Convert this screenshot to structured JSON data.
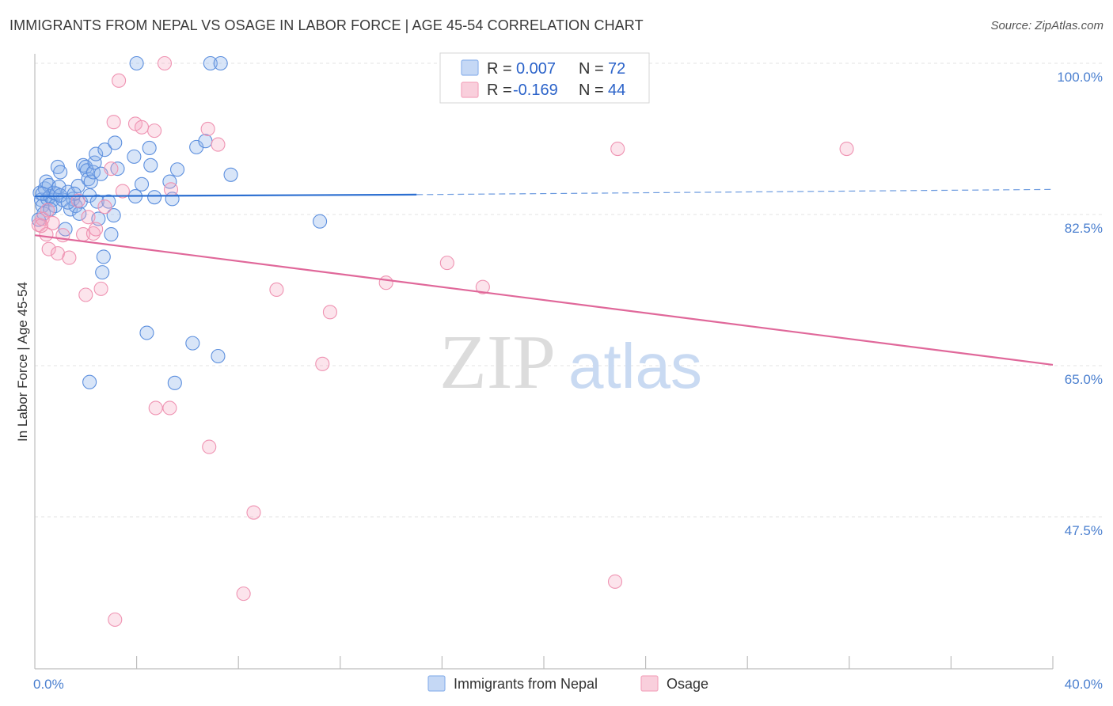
{
  "title": "IMMIGRANTS FROM NEPAL VS OSAGE IN LABOR FORCE | AGE 45-54 CORRELATION CHART",
  "source": "Source: ZipAtlas.com",
  "watermark": {
    "zip": "ZIP",
    "atlas": "atlas"
  },
  "legend": {
    "rows": [
      {
        "r_label": "R = ",
        "r_value": "0.007",
        "n_label": "N = ",
        "n_value": "72"
      },
      {
        "r_label": "R = ",
        "r_value": "-0.169",
        "n_label": "N = ",
        "n_value": "44"
      }
    ]
  },
  "chart_data": {
    "type": "scatter",
    "title": "IMMIGRANTS FROM NEPAL VS OSAGE IN LABOR FORCE | AGE 45-54 CORRELATION CHART",
    "xlabel": "",
    "ylabel": "In Labor Force | Age 45-54",
    "xlim": [
      0,
      40
    ],
    "ylim": [
      31,
      101.5
    ],
    "x_tick_labels": [
      "0.0%",
      "40.0%"
    ],
    "y_ticks": [
      100,
      82.5,
      65,
      47.5
    ],
    "y_tick_labels": [
      "100.0%",
      "82.5%",
      "65.0%",
      "47.5%"
    ],
    "grid": true,
    "legend_position": "top-center",
    "colors": {
      "nepal": "#8fb4ec",
      "nepal_line": "#2c6fd1",
      "osage": "#f4a7bf",
      "osage_line": "#e0689a"
    },
    "series": [
      {
        "name": "Immigrants from Nepal",
        "r": 0.007,
        "n": 72,
        "trend": {
          "x": [
            0,
            15,
            40
          ],
          "y": [
            84.6,
            84.8,
            85.4
          ]
        },
        "points": [
          [
            0.2,
            85
          ],
          [
            0.25,
            84.2
          ],
          [
            0.3,
            83.5
          ],
          [
            0.35,
            82.6
          ],
          [
            0.4,
            85.5
          ],
          [
            0.45,
            86.3
          ],
          [
            0.5,
            84.3
          ],
          [
            0.55,
            85.9
          ],
          [
            0.6,
            84.6
          ],
          [
            0.7,
            84.2
          ],
          [
            0.75,
            85
          ],
          [
            0.8,
            83.5
          ],
          [
            0.85,
            84.9
          ],
          [
            0.9,
            88
          ],
          [
            0.95,
            85.7
          ],
          [
            1.0,
            87.4
          ],
          [
            1.1,
            84.2
          ],
          [
            1.2,
            80.8
          ],
          [
            1.3,
            85.1
          ],
          [
            1.4,
            83.1
          ],
          [
            1.5,
            84.3
          ],
          [
            1.6,
            83.5
          ],
          [
            1.7,
            85.8
          ],
          [
            1.75,
            82.6
          ],
          [
            1.8,
            84
          ],
          [
            1.9,
            88.2
          ],
          [
            2.0,
            88
          ],
          [
            2.05,
            87.6
          ],
          [
            2.1,
            86.6
          ],
          [
            2.15,
            84.7
          ],
          [
            2.2,
            86.3
          ],
          [
            2.3,
            87.4
          ],
          [
            2.35,
            88.5
          ],
          [
            2.4,
            89.5
          ],
          [
            2.45,
            84
          ],
          [
            2.5,
            82
          ],
          [
            2.6,
            87.2
          ],
          [
            2.65,
            75.8
          ],
          [
            2.7,
            77.6
          ],
          [
            2.75,
            90
          ],
          [
            2.9,
            84
          ],
          [
            3.0,
            80.2
          ],
          [
            3.1,
            82.4
          ],
          [
            3.15,
            90.8
          ],
          [
            3.25,
            87.8
          ],
          [
            3.9,
            89.2
          ],
          [
            3.95,
            84.6
          ],
          [
            4.2,
            86
          ],
          [
            4.5,
            90.2
          ],
          [
            4.55,
            88.2
          ],
          [
            4.7,
            84.5
          ],
          [
            4.4,
            68.8
          ],
          [
            5.3,
            86.3
          ],
          [
            5.4,
            84.3
          ],
          [
            5.6,
            87.7
          ],
          [
            6.2,
            67.6
          ],
          [
            6.35,
            90.3
          ],
          [
            6.7,
            91
          ],
          [
            7.2,
            66.1
          ],
          [
            7.7,
            87.1
          ],
          [
            11.2,
            81.7
          ],
          [
            2.15,
            63.1
          ],
          [
            5.5,
            63
          ],
          [
            4.0,
            100
          ],
          [
            6.9,
            100
          ],
          [
            7.3,
            100
          ],
          [
            0.15,
            81.9
          ],
          [
            0.3,
            84.9
          ],
          [
            1.0,
            84.7
          ],
          [
            1.55,
            84.9
          ],
          [
            0.6,
            83.1
          ],
          [
            1.3,
            83.9
          ]
        ]
      },
      {
        "name": "Osage",
        "r": -0.169,
        "n": 44,
        "trend": {
          "x": [
            0,
            40
          ],
          "y": [
            80.1,
            65.1
          ]
        },
        "points": [
          [
            0.15,
            81.3
          ],
          [
            0.3,
            82
          ],
          [
            0.45,
            80.2
          ],
          [
            0.55,
            78.5
          ],
          [
            0.7,
            81.5
          ],
          [
            0.9,
            78
          ],
          [
            1.1,
            80.1
          ],
          [
            1.35,
            77.5
          ],
          [
            1.9,
            80.2
          ],
          [
            2.0,
            73.2
          ],
          [
            2.3,
            80.3
          ],
          [
            2.4,
            80.8
          ],
          [
            2.6,
            73.9
          ],
          [
            2.75,
            83.4
          ],
          [
            3.0,
            87.8
          ],
          [
            3.1,
            93.2
          ],
          [
            3.3,
            98
          ],
          [
            3.45,
            85.2
          ],
          [
            3.95,
            93
          ],
          [
            4.2,
            92.6
          ],
          [
            4.7,
            92.2
          ],
          [
            4.75,
            60.1
          ],
          [
            5.1,
            100
          ],
          [
            5.3,
            60.1
          ],
          [
            5.35,
            85.4
          ],
          [
            6.8,
            92.4
          ],
          [
            7.2,
            90.6
          ],
          [
            6.85,
            55.6
          ],
          [
            8.2,
            38.6
          ],
          [
            8.6,
            48
          ],
          [
            9.5,
            73.8
          ],
          [
            11.3,
            65.2
          ],
          [
            11.6,
            71.2
          ],
          [
            13.8,
            74.6
          ],
          [
            16.2,
            76.9
          ],
          [
            17.6,
            74.1
          ],
          [
            22.9,
            90.1
          ],
          [
            22.8,
            40
          ],
          [
            31.9,
            90.1
          ],
          [
            0.25,
            81.2
          ],
          [
            0.5,
            83
          ],
          [
            1.7,
            84.1
          ],
          [
            2.1,
            82.2
          ],
          [
            3.15,
            35.6
          ]
        ]
      }
    ]
  }
}
